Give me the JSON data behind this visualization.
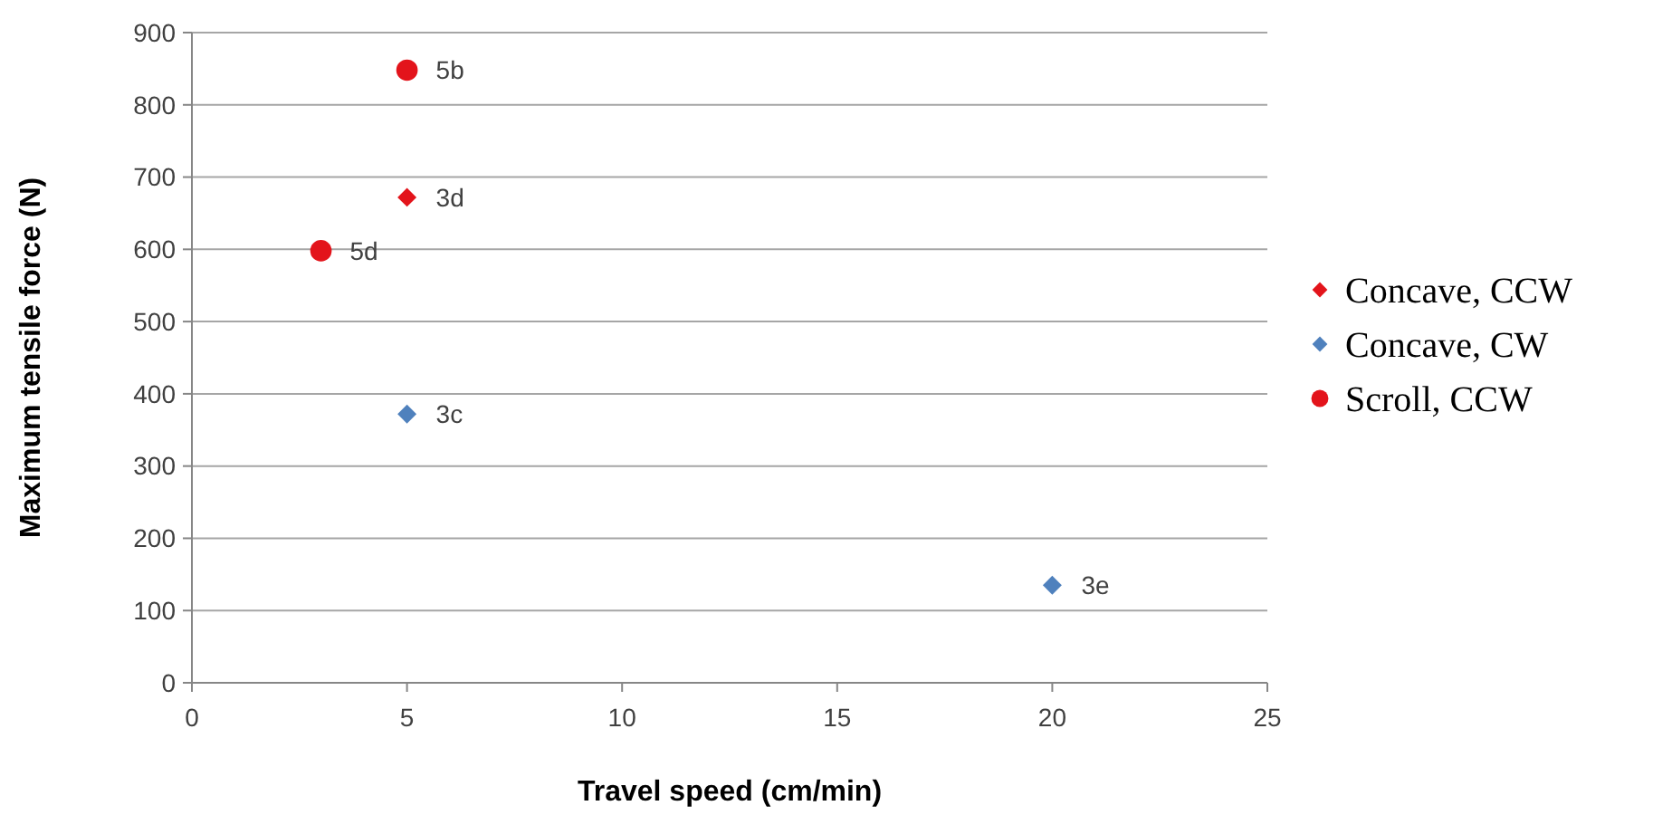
{
  "chart_data": {
    "type": "scatter",
    "xlabel": "Travel speed (cm/min)",
    "ylabel": "Maximum  tensile force (N)",
    "xlim": [
      0,
      25
    ],
    "xticks": [
      0,
      5,
      10,
      15,
      20,
      25
    ],
    "ylim": [
      0,
      900
    ],
    "yticks": [
      0,
      100,
      200,
      300,
      400,
      500,
      600,
      700,
      800,
      900
    ],
    "grid": "y",
    "legend": "right",
    "series": [
      {
        "name": "Concave, CCW",
        "color": "#e3141b",
        "marker": "diamond",
        "x": [
          5
        ],
        "values": [
          672
        ]
      },
      {
        "name": "Concave, CW",
        "color": "#4f81bd",
        "marker": "diamond",
        "x": [
          5,
          20
        ],
        "values": [
          372,
          135
        ]
      },
      {
        "name": "Scroll, CCW",
        "color": "#e3141b",
        "marker": "circle",
        "x": [
          5,
          3
        ],
        "values": [
          848,
          598
        ]
      }
    ],
    "annotations": [
      {
        "text": "5b",
        "x": 5,
        "y": 848
      },
      {
        "text": "3d",
        "x": 5,
        "y": 672
      },
      {
        "text": "5d",
        "x": 3,
        "y": 598
      },
      {
        "text": "3c",
        "x": 5,
        "y": 372
      },
      {
        "text": "3e",
        "x": 20,
        "y": 135
      }
    ]
  }
}
